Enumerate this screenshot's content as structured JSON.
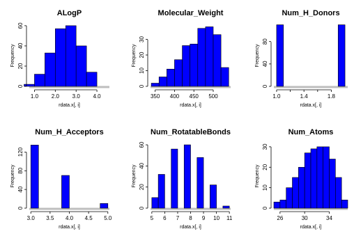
{
  "colors": {
    "bar": "#0000ff",
    "bar_stroke": "#000000",
    "axis": "#000000",
    "baseline": "#bebebe"
  },
  "chart_data": [
    {
      "type": "bar",
      "title": "ALogP",
      "xlabel": "rdata.x[, i]",
      "ylabel": "Frequency",
      "bins": [
        [
          0.5,
          1.0
        ],
        [
          1.0,
          1.5
        ],
        [
          1.5,
          2.0
        ],
        [
          2.0,
          2.5
        ],
        [
          2.5,
          3.0
        ],
        [
          3.0,
          3.5
        ],
        [
          3.5,
          4.0
        ],
        [
          4.0,
          4.5
        ]
      ],
      "values": [
        2,
        12,
        33,
        57,
        60,
        40,
        14,
        0
      ],
      "xlim": [
        0.75,
        4.6
      ],
      "ylim": [
        0,
        62
      ],
      "xticks": [
        1.0,
        2.0,
        3.0,
        4.0
      ],
      "xtick_labels": [
        "1.0",
        "2.0",
        "3.0",
        "4.0"
      ],
      "yticks": [
        0,
        20,
        40,
        60
      ],
      "ytick_labels": [
        "0",
        "20",
        "40",
        "60"
      ]
    },
    {
      "type": "bar",
      "title": "Molecular_Weight",
      "xlabel": "rdata.x[, i]",
      "ylabel": "Frequency",
      "bins": [
        [
          340,
          360
        ],
        [
          360,
          380
        ],
        [
          380,
          400
        ],
        [
          400,
          420
        ],
        [
          420,
          440
        ],
        [
          440,
          460
        ],
        [
          460,
          480
        ],
        [
          480,
          500
        ],
        [
          500,
          520
        ],
        [
          520,
          540
        ]
      ],
      "values": [
        2,
        6,
        11,
        17,
        26,
        27,
        37,
        38,
        33,
        12
      ],
      "xlim": [
        338,
        545
      ],
      "ylim": [
        0,
        40
      ],
      "xticks": [
        350,
        400,
        450,
        500
      ],
      "xtick_labels": [
        "350",
        "400",
        "450",
        "500"
      ],
      "yticks": [
        0,
        10,
        20,
        30
      ],
      "ytick_labels": [
        "0",
        "10",
        "20",
        "30"
      ]
    },
    {
      "type": "bar",
      "title": "Num_H_Donors",
      "xlabel": "rdata.x[, i]",
      "ylabel": "Frequency",
      "bins": [
        [
          1.0,
          1.1
        ],
        [
          1.9,
          2.0
        ]
      ],
      "values": [
        110,
        110
      ],
      "xlim": [
        0.96,
        2.04
      ],
      "ylim": [
        0,
        112
      ],
      "xticks": [
        1.0,
        1.2,
        1.4,
        1.6,
        1.8
      ],
      "xtick_labels": [
        "1.0",
        "",
        "1.4",
        "",
        "1.8"
      ],
      "yticks": [
        0,
        40,
        80
      ],
      "ytick_labels": [
        "0",
        "40",
        "80"
      ]
    },
    {
      "type": "bar",
      "title": "Num_H_Acceptors",
      "xlabel": "rdata.x[, i]",
      "ylabel": "Frequency",
      "bins": [
        [
          3.0,
          3.2
        ],
        [
          3.8,
          4.0
        ],
        [
          4.8,
          5.0
        ]
      ],
      "values": [
        135,
        70,
        10
      ],
      "xlim": [
        2.96,
        5.04
      ],
      "ylim": [
        0,
        140
      ],
      "xticks": [
        3.0,
        3.5,
        4.0,
        4.5,
        5.0
      ],
      "xtick_labels": [
        "3.0",
        "3.5",
        "4.0",
        "4.5",
        "5.0"
      ],
      "yticks": [
        0,
        40,
        80,
        120
      ],
      "ytick_labels": [
        "0",
        "40",
        "80",
        "120"
      ]
    },
    {
      "type": "bar",
      "title": "Num_RotatableBonds",
      "xlabel": "rdata.x[, i]",
      "ylabel": "Frequency",
      "bins": [
        [
          5.0,
          5.5
        ],
        [
          5.5,
          6.0
        ],
        [
          6.5,
          7.0
        ],
        [
          7.5,
          8.0
        ],
        [
          8.5,
          9.0
        ],
        [
          9.5,
          10.0
        ],
        [
          10.5,
          11.0
        ]
      ],
      "values": [
        10,
        32,
        56,
        60,
        48,
        22,
        2
      ],
      "xlim": [
        4.9,
        11.1
      ],
      "ylim": [
        0,
        62
      ],
      "xticks": [
        5,
        6,
        7,
        8,
        9,
        10,
        11
      ],
      "xtick_labels": [
        "5",
        "6",
        "7",
        "8",
        "9",
        "10",
        "11"
      ],
      "yticks": [
        0,
        20,
        40,
        60
      ],
      "ytick_labels": [
        "0",
        "20",
        "40",
        "60"
      ]
    },
    {
      "type": "bar",
      "title": "Num_Atoms",
      "xlabel": "rdata.x[, i]",
      "ylabel": "Frequency",
      "bins": [
        [
          25,
          26
        ],
        [
          26,
          27
        ],
        [
          27,
          28
        ],
        [
          28,
          29
        ],
        [
          29,
          30
        ],
        [
          30,
          31
        ],
        [
          31,
          32
        ],
        [
          32,
          33
        ],
        [
          33,
          34
        ],
        [
          34,
          35
        ],
        [
          35,
          36
        ],
        [
          36,
          37
        ]
      ],
      "values": [
        3,
        4,
        10,
        15,
        20,
        27,
        29,
        30,
        30,
        24,
        15,
        4
      ],
      "xlim": [
        25,
        37
      ],
      "ylim": [
        0,
        32
      ],
      "xticks": [
        26,
        30,
        34
      ],
      "xtick_labels": [
        "26",
        "30",
        "34"
      ],
      "yticks": [
        0,
        10,
        20,
        30
      ],
      "ytick_labels": [
        "0",
        "10",
        "20",
        "30"
      ]
    }
  ]
}
